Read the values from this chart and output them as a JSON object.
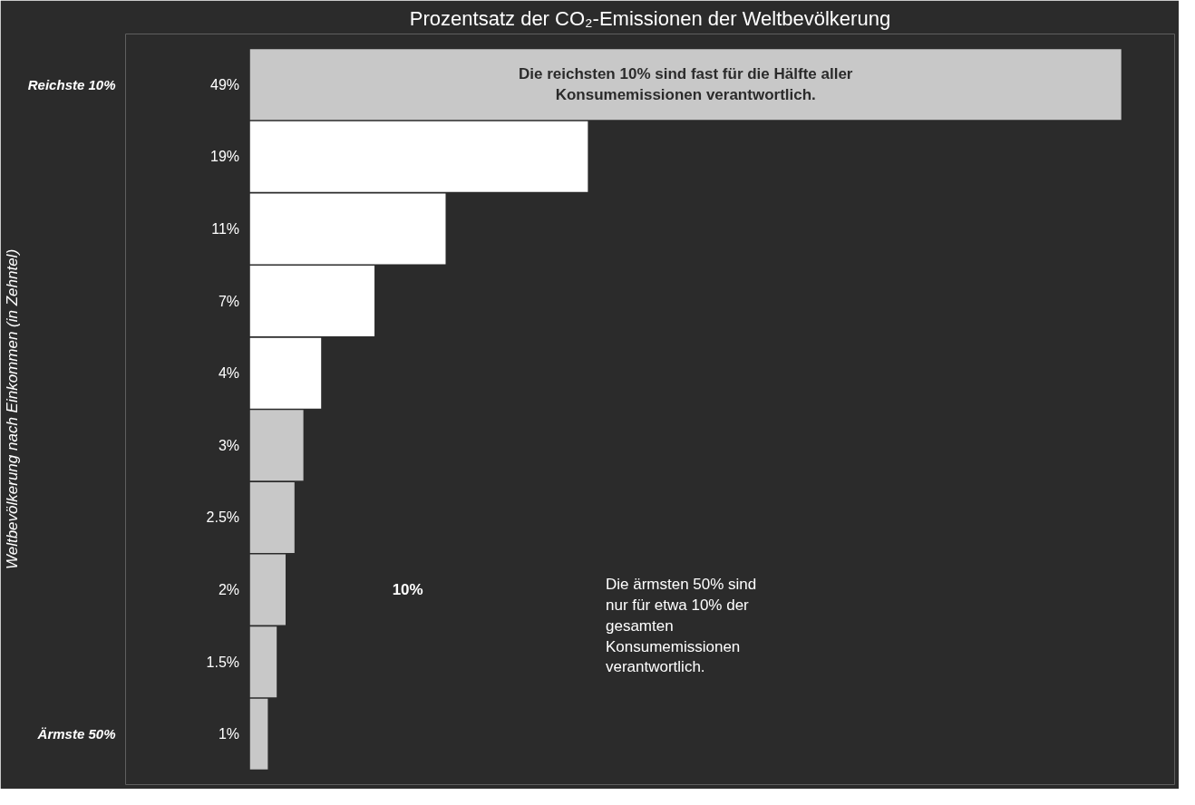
{
  "chart_data": {
    "type": "bar",
    "orientation": "horizontal",
    "title": "Prozentsatz der CO₂-Emissionen der Weltbevölkerung",
    "ylabel": "Weltbevölkerung nach Einkommen (in Zehntel)",
    "categories": [
      "Reichste 10%",
      null,
      null,
      null,
      null,
      null,
      null,
      null,
      null,
      "Ärmste 50%"
    ],
    "values": [
      49,
      19,
      11,
      7,
      4,
      3,
      2.5,
      2,
      1.5,
      1
    ],
    "colors": [
      "#c8c8c8",
      "#ffffff",
      "#ffffff",
      "#ffffff",
      "#ffffff",
      "#c8c8c8",
      "#c8c8c8",
      "#c8c8c8",
      "#c8c8c8",
      "#c8c8c8"
    ],
    "value_labels": [
      "49%",
      "19%",
      "11%",
      "7%",
      "4%",
      "3%",
      "2.5%",
      "2%",
      "1.5%",
      "1%"
    ],
    "annotations": [
      "Die reichsten 10% sind fast für die Hälfte aller Konsumemissionen verantwortlich.",
      "10%",
      "Die ärmsten 50% sind nur für etwa 10% der gesamten Konsumemissionen verantwortlich."
    ]
  }
}
